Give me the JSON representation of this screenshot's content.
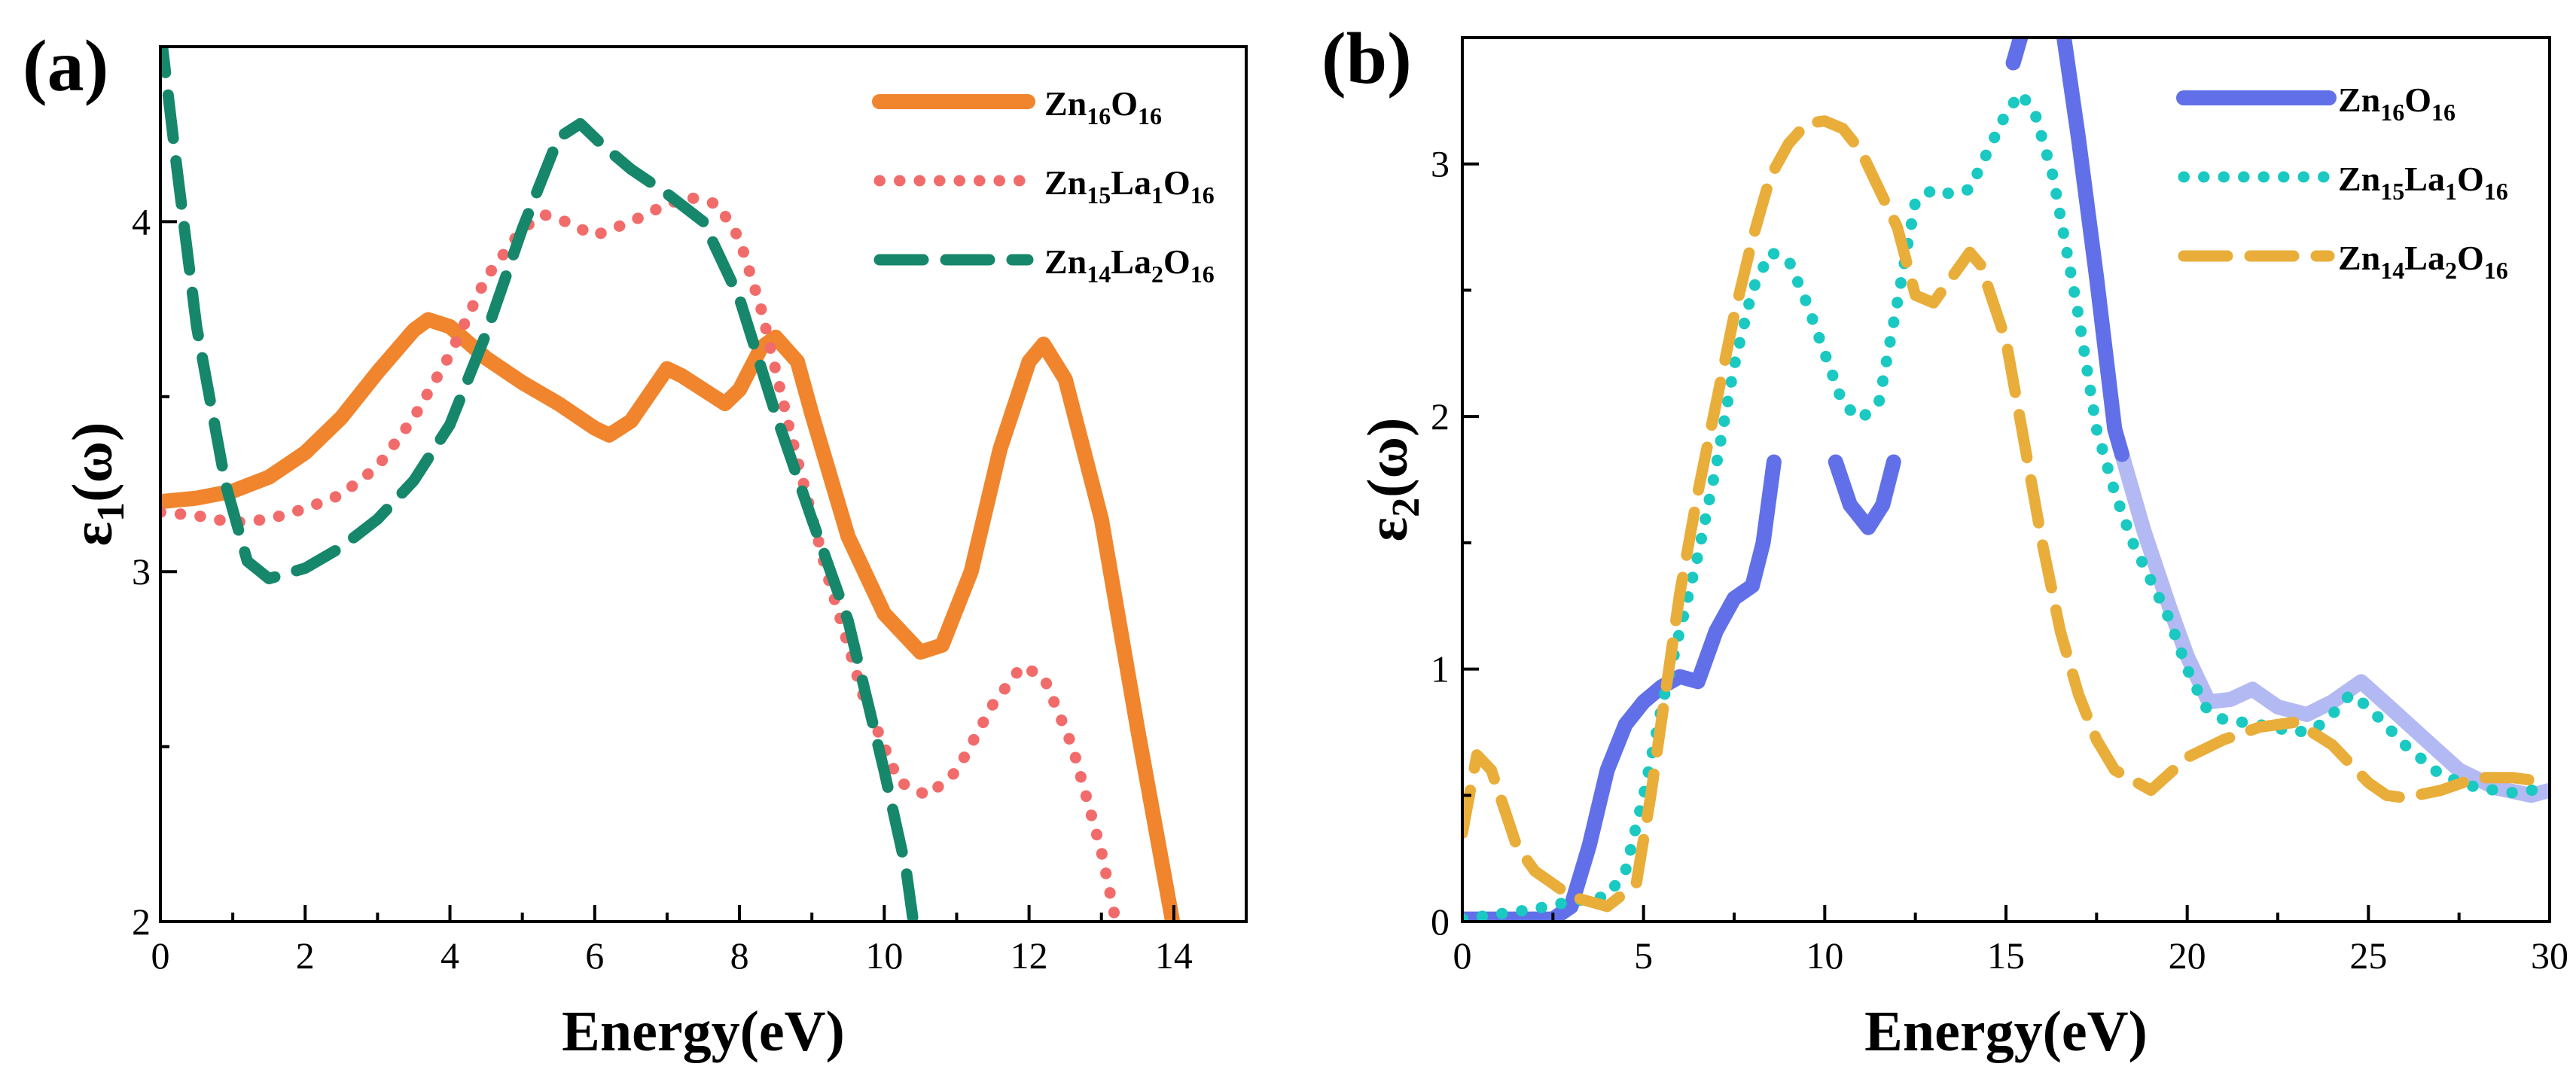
{
  "figure": {
    "colors": {
      "axis": "#000000",
      "zn16": "#f0852d",
      "zn15": "#f26b6b",
      "zn14": "#16876a",
      "b_zn16": "#6170e8",
      "b_zn16_light": "#b3b9f3",
      "b_zn15": "#19c9c2",
      "b_zn14": "#e9ad3a"
    }
  },
  "chart_data": [
    {
      "panel_label": "(a)",
      "type": "line",
      "xlabel": "Energy(eV)",
      "ylabel": {
        "main": "ε",
        "sub": "1",
        "tail": "(ω)"
      },
      "xlim": [
        0,
        15
      ],
      "ylim": [
        2,
        4.5
      ],
      "xticks": [
        "0",
        "2",
        "4",
        "6",
        "8",
        "10",
        "12",
        "14"
      ],
      "xtick_values": [
        0,
        2,
        4,
        6,
        8,
        10,
        12,
        14
      ],
      "yticks": [
        "2",
        "3",
        "4"
      ],
      "ytick_values": [
        2,
        3,
        4
      ],
      "legend_position": "top-right",
      "series": [
        {
          "key": "zn16",
          "name": [
            "Zn",
            "16",
            "O",
            "16"
          ],
          "style": "solid",
          "points": [
            [
              0,
              3.2
            ],
            [
              0.5,
              3.21
            ],
            [
              1,
              3.23
            ],
            [
              1.5,
              3.27
            ],
            [
              2,
              3.34
            ],
            [
              2.5,
              3.44
            ],
            [
              3,
              3.57
            ],
            [
              3.5,
              3.69
            ],
            [
              3.7,
              3.72
            ],
            [
              4,
              3.7
            ],
            [
              4.5,
              3.61
            ],
            [
              5,
              3.54
            ],
            [
              5.5,
              3.48
            ],
            [
              6,
              3.41
            ],
            [
              6.2,
              3.39
            ],
            [
              6.5,
              3.43
            ],
            [
              7,
              3.58
            ],
            [
              7.2,
              3.56
            ],
            [
              7.5,
              3.52
            ],
            [
              7.8,
              3.48
            ],
            [
              8,
              3.52
            ],
            [
              8.3,
              3.64
            ],
            [
              8.5,
              3.67
            ],
            [
              8.8,
              3.6
            ],
            [
              9,
              3.45
            ],
            [
              9.5,
              3.1
            ],
            [
              10,
              2.88
            ],
            [
              10.5,
              2.77
            ],
            [
              10.8,
              2.79
            ],
            [
              11.2,
              3.0
            ],
            [
              11.6,
              3.35
            ],
            [
              12,
              3.6
            ],
            [
              12.2,
              3.65
            ],
            [
              12.5,
              3.55
            ],
            [
              13,
              3.15
            ],
            [
              13.5,
              2.55
            ],
            [
              14,
              1.98
            ]
          ]
        },
        {
          "key": "zn15",
          "name": [
            "Zn",
            "15",
            "La",
            "1",
            "O",
            "16"
          ],
          "style": "dotted",
          "points": [
            [
              0,
              3.17
            ],
            [
              0.5,
              3.16
            ],
            [
              1,
              3.14
            ],
            [
              1.5,
              3.15
            ],
            [
              2,
              3.18
            ],
            [
              2.5,
              3.22
            ],
            [
              3,
              3.3
            ],
            [
              3.5,
              3.44
            ],
            [
              4,
              3.62
            ],
            [
              4.5,
              3.84
            ],
            [
              5,
              3.98
            ],
            [
              5.3,
              4.02
            ],
            [
              5.6,
              4.0
            ],
            [
              6,
              3.96
            ],
            [
              6.5,
              4.0
            ],
            [
              7,
              4.05
            ],
            [
              7.3,
              4.07
            ],
            [
              7.7,
              4.05
            ],
            [
              8,
              3.95
            ],
            [
              8.3,
              3.75
            ],
            [
              8.7,
              3.4
            ],
            [
              9.2,
              3.0
            ],
            [
              9.7,
              2.65
            ],
            [
              10.2,
              2.4
            ],
            [
              10.6,
              2.36
            ],
            [
              11,
              2.43
            ],
            [
              11.5,
              2.62
            ],
            [
              11.9,
              2.73
            ],
            [
              12.2,
              2.7
            ],
            [
              12.6,
              2.5
            ],
            [
              13,
              2.2
            ],
            [
              13.2,
              2.0
            ]
          ]
        },
        {
          "key": "zn14",
          "name": [
            "Zn",
            "14",
            "La",
            "2",
            "O",
            "16"
          ],
          "style": "dashed",
          "points": [
            [
              0,
              4.55
            ],
            [
              0.2,
              4.2
            ],
            [
              0.5,
              3.7
            ],
            [
              0.9,
              3.25
            ],
            [
              1.2,
              3.03
            ],
            [
              1.5,
              2.98
            ],
            [
              2,
              3.01
            ],
            [
              2.5,
              3.07
            ],
            [
              3,
              3.15
            ],
            [
              3.5,
              3.26
            ],
            [
              4,
              3.42
            ],
            [
              4.5,
              3.68
            ],
            [
              5,
              3.98
            ],
            [
              5.5,
              4.24
            ],
            [
              5.8,
              4.28
            ],
            [
              6.1,
              4.22
            ],
            [
              6.5,
              4.15
            ],
            [
              7,
              4.08
            ],
            [
              7.5,
              4.0
            ],
            [
              8,
              3.78
            ],
            [
              8.5,
              3.45
            ],
            [
              9,
              3.15
            ],
            [
              9.5,
              2.86
            ],
            [
              10,
              2.43
            ],
            [
              10.3,
              2.15
            ],
            [
              10.4,
              2.0
            ]
          ]
        }
      ]
    },
    {
      "panel_label": "(b)",
      "type": "line",
      "xlabel": "Energy(eV)",
      "ylabel": {
        "main": "ε",
        "sub": "2",
        "tail": "(ω)"
      },
      "xlim": [
        0,
        30
      ],
      "ylim": [
        0,
        3.5
      ],
      "xticks": [
        "0",
        "5",
        "10",
        "15",
        "20",
        "25",
        "30"
      ],
      "xtick_values": [
        0,
        5,
        10,
        15,
        20,
        25,
        30
      ],
      "yticks": [
        "0",
        "1",
        "2",
        "3"
      ],
      "ytick_values": [
        0,
        1,
        2,
        3
      ],
      "legend_position": "top-right",
      "series": [
        {
          "key": "b_zn16",
          "name": [
            "Zn",
            "16",
            "O",
            "16"
          ],
          "style": "solid",
          "segments": [
            [
              [
                0,
                0.01
              ],
              [
                2.5,
                0.01
              ],
              [
                3,
                0.06
              ],
              [
                3.5,
                0.3
              ],
              [
                4,
                0.6
              ],
              [
                4.5,
                0.78
              ],
              [
                5,
                0.87
              ],
              [
                5.5,
                0.93
              ],
              [
                6,
                0.97
              ],
              [
                6.5,
                0.95
              ],
              [
                7,
                1.15
              ],
              [
                7.5,
                1.28
              ],
              [
                8,
                1.33
              ],
              [
                8.3,
                1.5
              ],
              [
                8.6,
                1.82
              ]
            ],
            [
              [
                10.3,
                1.82
              ],
              [
                10.7,
                1.65
              ],
              [
                11.2,
                1.56
              ],
              [
                11.6,
                1.65
              ],
              [
                11.9,
                1.82
              ]
            ],
            [
              [
                15.2,
                3.4
              ],
              [
                15.6,
                3.6
              ]
            ],
            [
              [
                16.5,
                3.6
              ],
              [
                17,
                3.1
              ],
              [
                17.5,
                2.55
              ],
              [
                18,
                1.95
              ],
              [
                18.2,
                1.85
              ]
            ]
          ],
          "light_segment": [
            [
              18.2,
              1.85
            ],
            [
              18.8,
              1.55
            ],
            [
              19.5,
              1.25
            ],
            [
              20,
              1.05
            ],
            [
              20.6,
              0.87
            ],
            [
              21.2,
              0.88
            ],
            [
              21.8,
              0.92
            ],
            [
              22.5,
              0.85
            ],
            [
              23.3,
              0.82
            ],
            [
              24,
              0.87
            ],
            [
              24.8,
              0.95
            ],
            [
              25.5,
              0.86
            ],
            [
              26.5,
              0.73
            ],
            [
              27.5,
              0.6
            ],
            [
              28.5,
              0.53
            ],
            [
              29.5,
              0.5
            ],
            [
              30,
              0.52
            ]
          ]
        },
        {
          "key": "b_zn15",
          "name": [
            "Zn",
            "15",
            "La",
            "1",
            "O",
            "16"
          ],
          "style": "dotted",
          "points": [
            [
              0,
              0.01
            ],
            [
              1,
              0.03
            ],
            [
              2,
              0.05
            ],
            [
              3,
              0.08
            ],
            [
              4,
              0.1
            ],
            [
              4.5,
              0.2
            ],
            [
              5,
              0.5
            ],
            [
              5.5,
              0.85
            ],
            [
              6,
              1.15
            ],
            [
              6.5,
              1.45
            ],
            [
              7,
              1.8
            ],
            [
              7.5,
              2.2
            ],
            [
              8,
              2.5
            ],
            [
              8.5,
              2.65
            ],
            [
              9,
              2.62
            ],
            [
              9.5,
              2.45
            ],
            [
              10,
              2.25
            ],
            [
              10.5,
              2.05
            ],
            [
              11,
              1.99
            ],
            [
              11.5,
              2.06
            ],
            [
              12,
              2.45
            ],
            [
              12.5,
              2.85
            ],
            [
              13,
              2.9
            ],
            [
              13.5,
              2.88
            ],
            [
              14,
              2.9
            ],
            [
              14.5,
              3.05
            ],
            [
              15,
              3.2
            ],
            [
              15.4,
              3.28
            ],
            [
              15.8,
              3.2
            ],
            [
              16.3,
              2.95
            ],
            [
              17,
              2.4
            ],
            [
              17.5,
              1.95
            ],
            [
              18,
              1.7
            ],
            [
              18.5,
              1.5
            ],
            [
              19,
              1.35
            ],
            [
              19.5,
              1.2
            ],
            [
              20,
              1.0
            ],
            [
              20.5,
              0.85
            ],
            [
              21,
              0.8
            ],
            [
              22,
              0.78
            ],
            [
              23,
              0.75
            ],
            [
              23.5,
              0.76
            ],
            [
              24,
              0.82
            ],
            [
              24.5,
              0.9
            ],
            [
              25,
              0.85
            ],
            [
              26,
              0.7
            ],
            [
              27,
              0.58
            ],
            [
              28,
              0.53
            ],
            [
              29,
              0.51
            ],
            [
              30,
              0.53
            ]
          ]
        },
        {
          "key": "b_zn14",
          "name": [
            "Zn",
            "14",
            "La",
            "2",
            "O",
            "16"
          ],
          "style": "dashed",
          "points": [
            [
              0,
              0.35
            ],
            [
              0.4,
              0.66
            ],
            [
              0.8,
              0.6
            ],
            [
              1.5,
              0.3
            ],
            [
              2,
              0.2
            ],
            [
              3,
              0.1
            ],
            [
              4,
              0.06
            ],
            [
              4.8,
              0.15
            ],
            [
              5.2,
              0.5
            ],
            [
              5.6,
              0.9
            ],
            [
              6,
              1.3
            ],
            [
              6.5,
              1.7
            ],
            [
              7,
              2.05
            ],
            [
              7.5,
              2.4
            ],
            [
              8,
              2.7
            ],
            [
              8.5,
              2.95
            ],
            [
              9,
              3.08
            ],
            [
              9.5,
              3.16
            ],
            [
              10,
              3.17
            ],
            [
              10.5,
              3.14
            ],
            [
              11,
              3.05
            ],
            [
              11.5,
              2.9
            ],
            [
              12,
              2.75
            ],
            [
              12.5,
              2.48
            ],
            [
              13,
              2.45
            ],
            [
              13.5,
              2.55
            ],
            [
              14,
              2.65
            ],
            [
              14.3,
              2.6
            ],
            [
              15,
              2.3
            ],
            [
              15.5,
              1.9
            ],
            [
              16,
              1.5
            ],
            [
              16.5,
              1.15
            ],
            [
              17,
              0.9
            ],
            [
              17.5,
              0.72
            ],
            [
              18,
              0.6
            ],
            [
              19,
              0.52
            ],
            [
              20,
              0.65
            ],
            [
              21,
              0.72
            ],
            [
              22,
              0.77
            ],
            [
              23,
              0.79
            ],
            [
              24,
              0.7
            ],
            [
              25,
              0.55
            ],
            [
              25.5,
              0.5
            ],
            [
              26,
              0.49
            ],
            [
              27,
              0.52
            ],
            [
              28,
              0.57
            ],
            [
              29,
              0.57
            ],
            [
              30,
              0.55
            ]
          ]
        }
      ]
    }
  ]
}
